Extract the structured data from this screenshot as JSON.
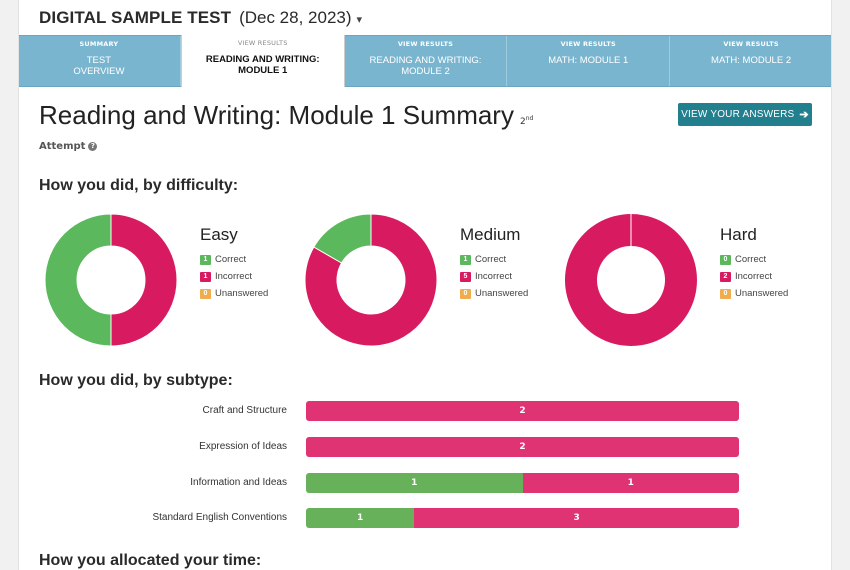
{
  "header": {
    "test_name": "DIGITAL SAMPLE TEST",
    "test_date": "(Dec 28, 2023)",
    "caret": "▾"
  },
  "tabs": [
    {
      "kicker": "SUMMARY",
      "label_line1": "TEST",
      "label_line2": "OVERVIEW",
      "active": false
    },
    {
      "kicker": "VIEW RESULTS",
      "label_line1": "READING AND WRITING:",
      "label_line2": "MODULE 1",
      "active": true
    },
    {
      "kicker": "VIEW RESULTS",
      "label_line1": "READING AND WRITING:",
      "label_line2": "MODULE 2",
      "active": false
    },
    {
      "kicker": "VIEW RESULTS",
      "label_line1": "MATH: MODULE 1",
      "label_line2": "",
      "active": false
    },
    {
      "kicker": "VIEW RESULTS",
      "label_line1": "MATH: MODULE 2",
      "label_line2": "",
      "active": false
    }
  ],
  "main": {
    "title": "Reading and Writing: Module 1 Summary",
    "attempt_number": "2",
    "attempt_suffix": "nd",
    "attempt_label": "Attempt",
    "help_icon": "?",
    "view_answers_label": "VIEW YOUR ANSWERS",
    "arrow_icon": "➔"
  },
  "sections": {
    "difficulty_title": "How you did, by difficulty:",
    "subtype_title": "How you did, by subtype:",
    "time_title": "How you allocated your time:"
  },
  "colors": {
    "correct": "#5cb85c",
    "incorrect": "#d81b60",
    "unanswered": "#f0ad4e",
    "bar_incorrect": "#e03374",
    "bar_correct": "#66b159"
  },
  "legend_labels": {
    "correct": "Correct",
    "incorrect": "Incorrect",
    "unanswered": "Unanswered"
  },
  "chart_data": [
    {
      "type": "pie",
      "title": "Easy",
      "categories": [
        "Correct",
        "Incorrect",
        "Unanswered"
      ],
      "values": [
        1,
        1,
        0
      ]
    },
    {
      "type": "pie",
      "title": "Medium",
      "categories": [
        "Correct",
        "Incorrect",
        "Unanswered"
      ],
      "values": [
        1,
        5,
        0
      ]
    },
    {
      "type": "pie",
      "title": "Hard",
      "categories": [
        "Correct",
        "Incorrect",
        "Unanswered"
      ],
      "values": [
        0,
        2,
        0
      ]
    },
    {
      "type": "bar",
      "stacked": true,
      "orientation": "horizontal",
      "categories": [
        "Craft and Structure",
        "Expression of Ideas",
        "Information and Ideas",
        "Standard English Conventions"
      ],
      "series": [
        {
          "values": [
            0,
            0,
            1,
            1
          ]
        },
        {
          "values": [
            2,
            2,
            1,
            3
          ]
        }
      ]
    }
  ]
}
